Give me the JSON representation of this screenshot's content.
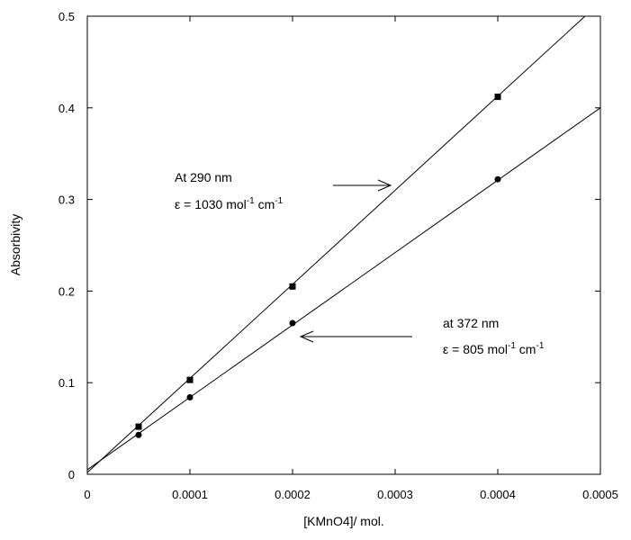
{
  "chart_data": {
    "type": "scatter",
    "xlabel": "[KMnO4]/ mol.",
    "ylabel": "Absorbivity",
    "xlim": [
      0,
      0.0005
    ],
    "ylim": [
      0,
      0.5
    ],
    "x_ticks": [
      "0",
      "0.0001",
      "0.0002",
      "0.0003",
      "0.0004",
      "0.0005"
    ],
    "y_ticks": [
      "0",
      "0.1",
      "0.2",
      "0.3",
      "0.4",
      "0.5"
    ],
    "grid": false,
    "series": [
      {
        "marker": "square",
        "x": [
          5e-05,
          0.0001,
          0.0002,
          0.0004
        ],
        "y": [
          0.052,
          0.103,
          0.205,
          0.412
        ],
        "fit": {
          "intercept": 0.002,
          "end_x": 0.000485,
          "end_y": 0.5
        }
      },
      {
        "marker": "circle",
        "x": [
          5e-05,
          0.0001,
          0.0002,
          0.0004
        ],
        "y": [
          0.043,
          0.084,
          0.165,
          0.322
        ],
        "fit": {
          "intercept": 0.005,
          "end_x": 0.0005,
          "end_y": 0.4
        }
      }
    ],
    "annotations": [
      {
        "line1": "At 290 nm",
        "prefix": "ε = 1030 mol",
        "sup1": "-1",
        "mid": " cm",
        "sup2": "-1"
      },
      {
        "line1": "at 372 nm",
        "prefix": "ε = 805 mol",
        "sup1": "-1",
        "mid": " cm",
        "sup2": "-1"
      }
    ]
  }
}
